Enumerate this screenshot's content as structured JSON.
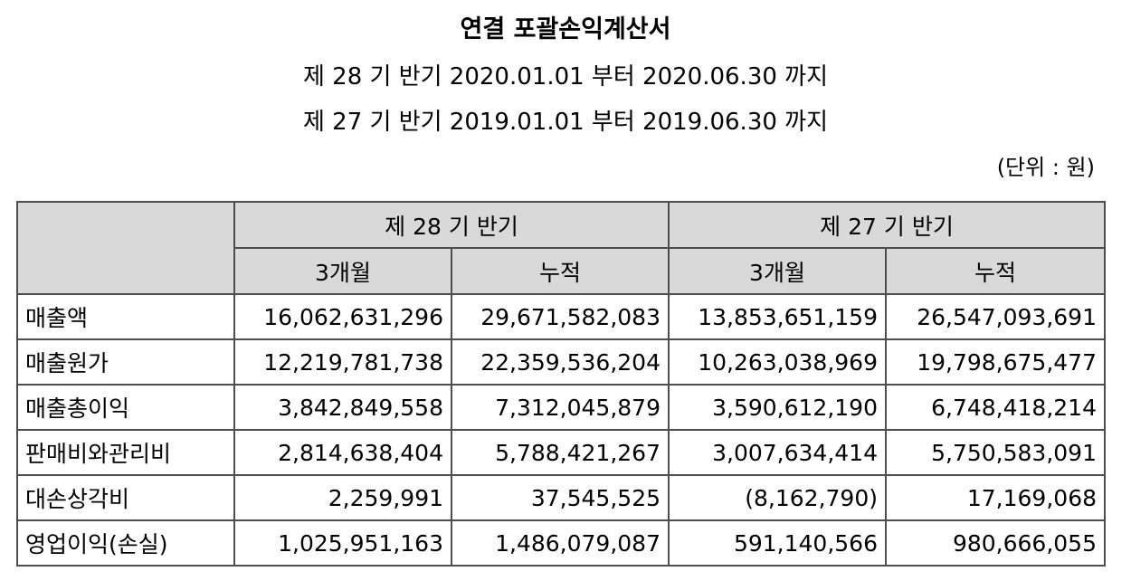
{
  "header": {
    "title": "연결 포괄손익계산서",
    "period_current": "제 28 기 반기 2020.01.01 부터 2020.06.30 까지",
    "period_prior": "제 27 기 반기 2019.01.01 부터 2019.06.30 까지",
    "unit": "(단위 : 원)"
  },
  "table": {
    "group_headers": [
      "제 28 기 반기",
      "제 27 기 반기"
    ],
    "sub_headers": [
      "3개월",
      "누적",
      "3개월",
      "누적"
    ],
    "rows": [
      {
        "label": "매출액",
        "values": [
          "16,062,631,296",
          "29,671,582,083",
          "13,853,651,159",
          "26,547,093,691"
        ]
      },
      {
        "label": "매출원가",
        "values": [
          "12,219,781,738",
          "22,359,536,204",
          "10,263,038,969",
          "19,798,675,477"
        ]
      },
      {
        "label": "매출총이익",
        "values": [
          "3,842,849,558",
          "7,312,045,879",
          "3,590,612,190",
          "6,748,418,214"
        ]
      },
      {
        "label": "판매비와관리비",
        "values": [
          "2,814,638,404",
          "5,788,421,267",
          "3,007,634,414",
          "5,750,583,091"
        ]
      },
      {
        "label": "대손상각비",
        "values": [
          "2,259,991",
          "37,545,525",
          "(8,162,790)",
          "17,169,068"
        ]
      },
      {
        "label": "영업이익(손실)",
        "values": [
          "1,025,951,163",
          "1,486,079,087",
          "591,140,566",
          "980,666,055"
        ]
      }
    ]
  }
}
